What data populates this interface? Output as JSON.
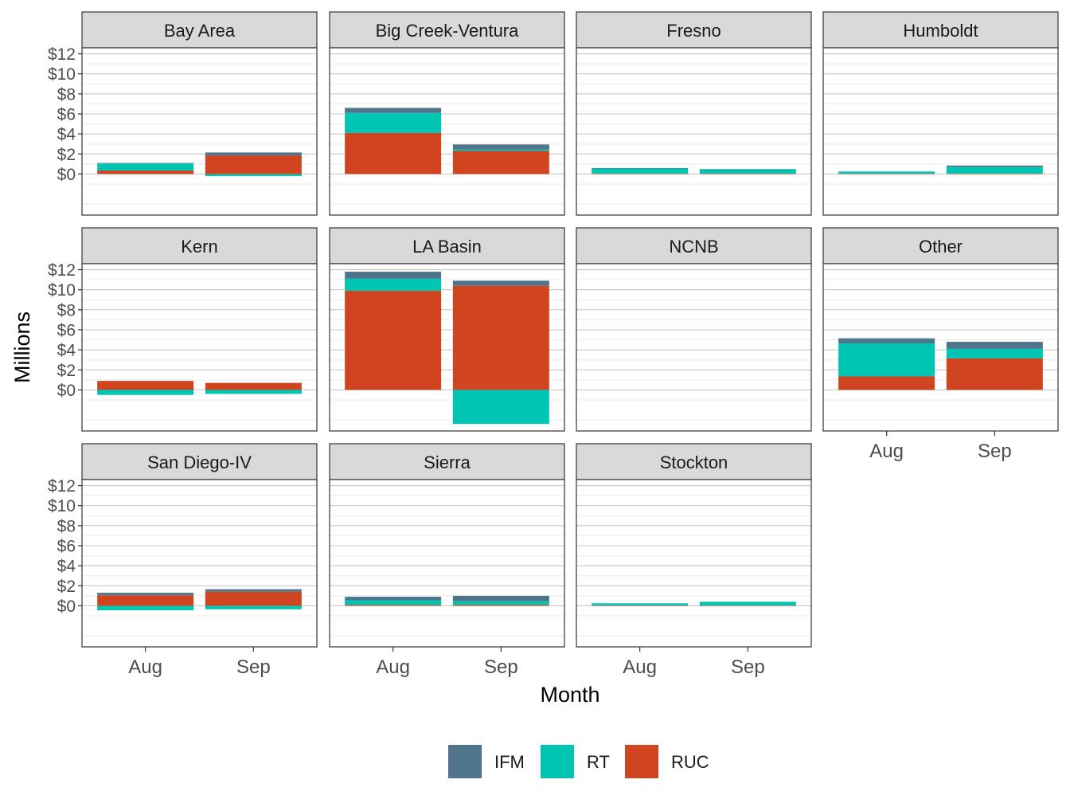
{
  "chart_data": {
    "type": "bar",
    "subtype": "faceted stacked bar",
    "xlabel": "Month",
    "ylabel": "Millions",
    "categories": [
      "Aug",
      "Sep"
    ],
    "y_ticks": [
      0,
      2,
      4,
      6,
      8,
      10,
      12
    ],
    "y_tick_labels": [
      "$0",
      "$2",
      "$4",
      "$6",
      "$8",
      "$10",
      "$12"
    ],
    "ylim": [
      -4.1,
      12.6
    ],
    "legend_position": "bottom",
    "legend": [
      {
        "name": "IFM",
        "color": "#4E758B"
      },
      {
        "name": "RT",
        "color": "#00C5B2"
      },
      {
        "name": "RUC",
        "color": "#D04520"
      }
    ],
    "facets": [
      {
        "name": "Bay Area",
        "values": {
          "Aug": {
            "RUC": 0.35,
            "RT": 0.7,
            "IFM": 0.05
          },
          "Sep": {
            "RUC": 1.85,
            "RT": -0.2,
            "IFM": 0.3
          }
        }
      },
      {
        "name": "Big Creek-Ventura",
        "values": {
          "Aug": {
            "RUC": 4.1,
            "RT": 2.0,
            "IFM": 0.5
          },
          "Sep": {
            "RUC": 2.3,
            "RT": 0.15,
            "IFM": 0.5
          }
        }
      },
      {
        "name": "Fresno",
        "values": {
          "Aug": {
            "RUC": 0.05,
            "RT": 0.5,
            "IFM": 0.05
          },
          "Sep": {
            "RUC": 0.05,
            "RT": 0.4,
            "IFM": 0.05
          }
        }
      },
      {
        "name": "Humboldt",
        "values": {
          "Aug": {
            "RUC": 0.05,
            "RT": 0.2,
            "IFM": 0.0
          },
          "Sep": {
            "RUC": 0.05,
            "RT": 0.65,
            "IFM": 0.15
          }
        }
      },
      {
        "name": "Kern",
        "values": {
          "Aug": {
            "RUC": 0.9,
            "RT": -0.5,
            "IFM": 0.0
          },
          "Sep": {
            "RUC": 0.7,
            "RT": -0.4,
            "IFM": 0.0
          }
        }
      },
      {
        "name": "LA Basin",
        "values": {
          "Aug": {
            "RUC": 9.9,
            "RT": 1.2,
            "IFM": 0.7
          },
          "Sep": {
            "RUC": 10.4,
            "RT": -3.4,
            "IFM": 0.5
          }
        }
      },
      {
        "name": "NCNB",
        "values": {
          "Aug": {
            "RUC": 0,
            "RT": 0,
            "IFM": 0
          },
          "Sep": {
            "RUC": 0,
            "RT": 0,
            "IFM": 0
          }
        }
      },
      {
        "name": "Other",
        "values": {
          "Aug": {
            "RUC": 1.35,
            "RT": 3.3,
            "IFM": 0.5
          },
          "Sep": {
            "RUC": 3.15,
            "RT": 0.95,
            "IFM": 0.7
          }
        }
      },
      {
        "name": "San Diego-IV",
        "values": {
          "Aug": {
            "RUC": 1.05,
            "RT": -0.45,
            "IFM": 0.25
          },
          "Sep": {
            "RUC": 1.4,
            "RT": -0.35,
            "IFM": 0.25
          }
        }
      },
      {
        "name": "Sierra",
        "values": {
          "Aug": {
            "RUC": 0.1,
            "RT": 0.45,
            "IFM": 0.35
          },
          "Sep": {
            "RUC": 0.1,
            "RT": 0.35,
            "IFM": 0.55
          }
        }
      },
      {
        "name": "Stockton",
        "values": {
          "Aug": {
            "RUC": 0.05,
            "RT": 0.2,
            "IFM": 0.0
          },
          "Sep": {
            "RUC": 0.05,
            "RT": 0.35,
            "IFM": 0.0
          }
        }
      }
    ]
  }
}
